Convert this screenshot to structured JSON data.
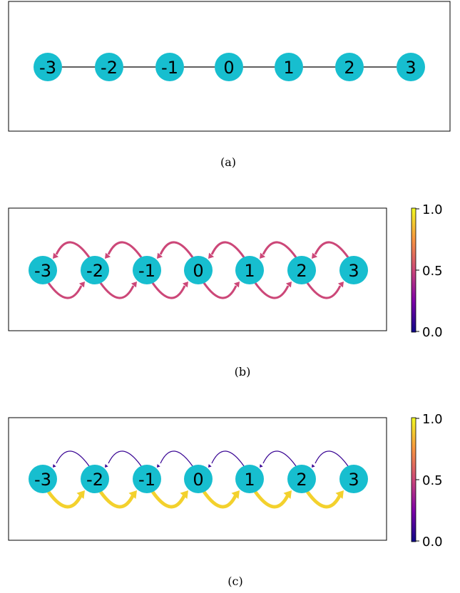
{
  "colors": {
    "node_fill": "#17becf",
    "frame": "#000000",
    "undirected_edge": "#000000",
    "uniform_arc": "#cc4778",
    "weak_arc": "#5c01a6",
    "strong_arc": "#fdb42f"
  },
  "nodes": [
    "-3",
    "-2",
    "-1",
    "0",
    "1",
    "2",
    "3"
  ],
  "panels": [
    {
      "caption": "(a)",
      "type": "undirected-path",
      "colorbar": null
    },
    {
      "caption": "(b)",
      "type": "directed-bidirectional",
      "colormap": "plasma",
      "leftward_weight": 0.5,
      "rightward_weight": 0.5,
      "colorbar": {
        "ticks": [
          "1.0",
          "0.5",
          "0.0"
        ]
      }
    },
    {
      "caption": "(c)",
      "type": "directed-bidirectional",
      "colormap": "plasma",
      "leftward_weight": 0.1,
      "rightward_weight": 0.9,
      "colorbar": {
        "ticks": [
          "1.0",
          "0.5",
          "0.0"
        ]
      }
    }
  ]
}
